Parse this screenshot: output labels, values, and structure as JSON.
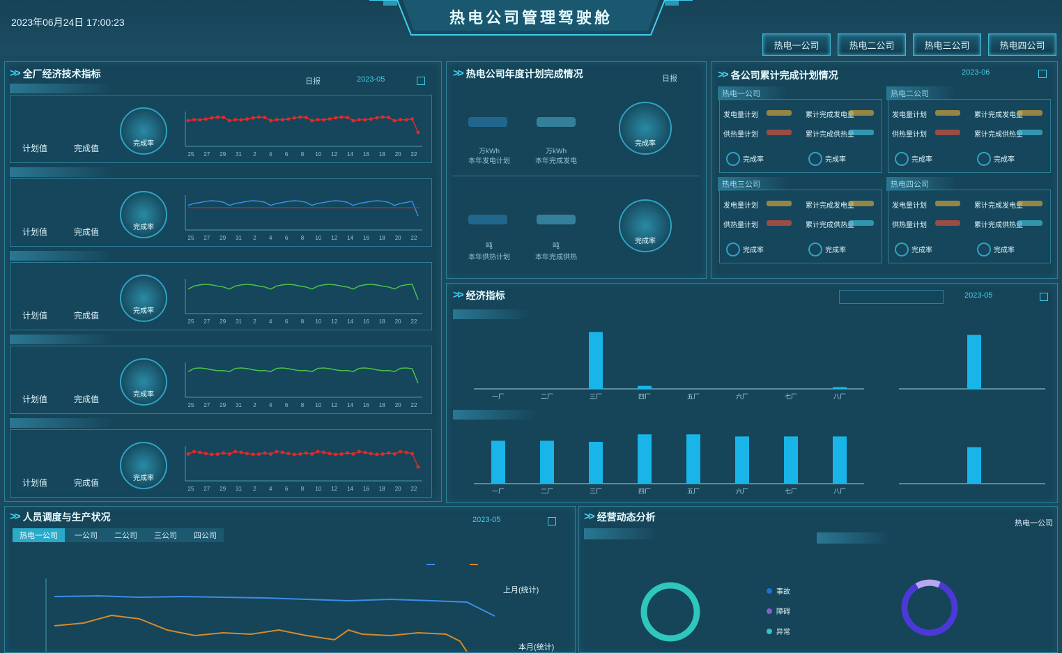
{
  "header": {
    "datetime": "2023年06月24日 17:00:23",
    "title": "热电公司管理驾驶舱",
    "companies": [
      "热电一公司",
      "热电二公司",
      "热电三公司",
      "热电四公司"
    ]
  },
  "left_panel": {
    "title": "全厂经济技术指标",
    "dropdown": "日报",
    "date": "2023-05",
    "rows": [
      {
        "badge": "完成率",
        "labels": [
          "计划值",
          "完成值"
        ],
        "color": "#e02a2a",
        "points": true
      },
      {
        "badge": "完成率",
        "labels": [
          "计划值",
          "完成值"
        ],
        "color": "#3a8fe6",
        "points": false
      },
      {
        "badge": "完成率",
        "labels": [
          "计划值",
          "完成值"
        ],
        "color": "#4cc24c",
        "points": false
      },
      {
        "badge": "完成率",
        "labels": [
          "计划值",
          "完成值"
        ],
        "color": "#4cc24c",
        "points": false
      },
      {
        "badge": "完成率",
        "labels": [
          "计划值",
          "完成值"
        ],
        "color": "#e02a2a",
        "points": true
      }
    ],
    "x_ticks": [
      "25",
      "27",
      "29",
      "31",
      "2",
      "4",
      "6",
      "8",
      "10",
      "12",
      "14",
      "16",
      "18",
      "20",
      "22"
    ]
  },
  "mid_panel": {
    "title": "热电公司年度计划完成情况",
    "dropdown": "日报",
    "stats": [
      {
        "l1": "万kWh",
        "l2": "本年发电计划",
        "r1": "万kWh",
        "r2": "本年完成发电",
        "badge": "完成率"
      },
      {
        "l1": "吨",
        "l2": "本年供热计划",
        "r1": "吨",
        "r2": "本年完成供热",
        "badge": "完成率"
      }
    ]
  },
  "right_panel": {
    "title": "各公司累计完成计划情况",
    "date": "2023-06",
    "companies": [
      {
        "name": "热电一公司",
        "rows": [
          [
            "发电量计划",
            "累计完成发电量"
          ],
          [
            "供热量计划",
            "累计完成供热量"
          ]
        ],
        "badges": [
          "完成率",
          "完成率"
        ]
      },
      {
        "name": "热电二公司",
        "rows": [
          [
            "发电量计划",
            "累计完成发电量"
          ],
          [
            "供热量计划",
            "累计完成供热量"
          ]
        ],
        "badges": [
          "完成率",
          "完成率"
        ]
      },
      {
        "name": "热电三公司",
        "rows": [
          [
            "发电量计划",
            "累计完成发电量"
          ],
          [
            "供热量计划",
            "累计完成供热量"
          ]
        ],
        "badges": [
          "完成率",
          "完成率"
        ]
      },
      {
        "name": "热电四公司",
        "rows": [
          [
            "发电量计划",
            "累计完成发电量"
          ],
          [
            "供热量计划",
            "累计完成供热量"
          ]
        ],
        "badges": [
          "完成率",
          "完成率"
        ]
      }
    ]
  },
  "bar_panel": {
    "title": "经济指标",
    "date": "2023-05",
    "categories": [
      "一厂",
      "二厂",
      "三厂",
      "四厂",
      "五厂",
      "六厂",
      "七厂",
      "八厂"
    ],
    "chart1": {
      "values": [
        0,
        0,
        95,
        5,
        0,
        0,
        0,
        3
      ],
      "side_value": 90
    },
    "chart2": {
      "values": [
        200,
        200,
        195,
        230,
        230,
        220,
        220,
        220
      ],
      "side_value": 170
    }
  },
  "bottom_left": {
    "title": "人员调度与生产状况",
    "date": "2023-05",
    "tabs": [
      "热电一公司",
      "一公司",
      "二公司",
      "三公司",
      "四公司"
    ],
    "note": "上月(统计)",
    "footer_note": "本月(统计)"
  },
  "bottom_right": {
    "title": "经营动态分析",
    "dropdown": "热电一公司",
    "sub_left": "",
    "sub_right": "",
    "legend": [
      "事故",
      "障碍",
      "异常"
    ]
  },
  "chart_data": [
    {
      "type": "bar",
      "categories": [
        "一厂",
        "二厂",
        "三厂",
        "四厂",
        "五厂",
        "六厂",
        "七厂",
        "八厂"
      ],
      "values": [
        0,
        0,
        95,
        5,
        0,
        0,
        0,
        3
      ]
    },
    {
      "type": "bar",
      "categories": [
        "一厂",
        "二厂",
        "三厂",
        "四厂",
        "五厂",
        "六厂",
        "七厂",
        "八厂"
      ],
      "values": [
        200,
        200,
        195,
        230,
        230,
        220,
        220,
        220
      ]
    }
  ]
}
